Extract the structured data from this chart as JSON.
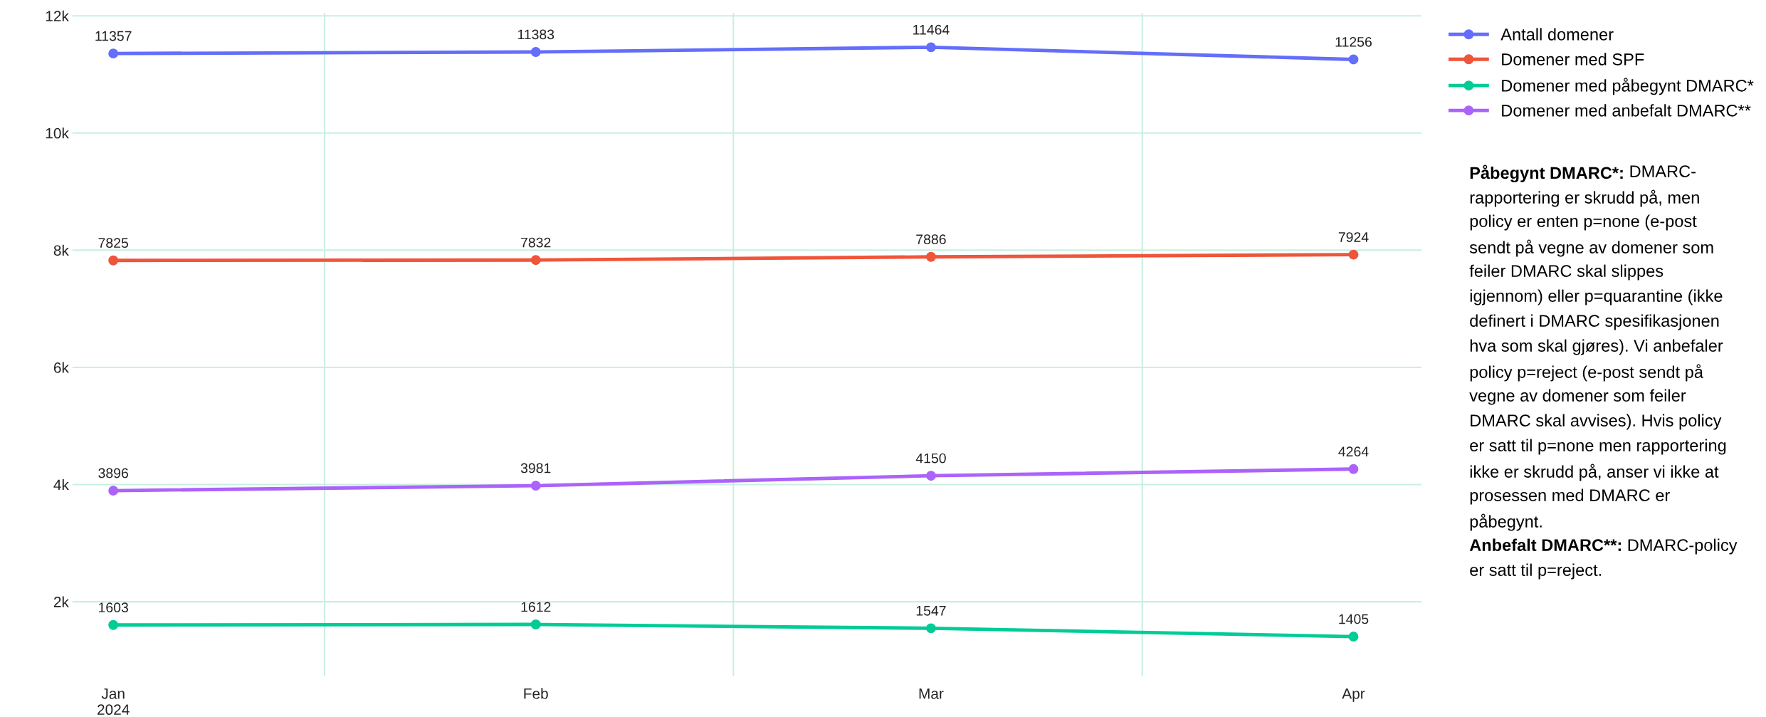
{
  "chart_data": {
    "type": "line",
    "x": [
      "2024-01-01",
      "2024-02-01",
      "2024-03-01",
      "2024-04-01"
    ],
    "series": [
      {
        "name": "Antall domener",
        "color": "#636efa",
        "values": [
          11357,
          11383,
          11464,
          11256
        ]
      },
      {
        "name": "Domener med SPF",
        "color": "#ef553b",
        "values": [
          7825,
          7832,
          7886,
          7924
        ]
      },
      {
        "name": "Domener med påbegynt DMARC*",
        "color": "#00cc96",
        "values": [
          1603,
          1612,
          1547,
          1405
        ]
      },
      {
        "name": "Domener med anbefalt DMARC**",
        "color": "#ab63fa",
        "values": [
          3896,
          3981,
          4150,
          4264
        ]
      }
    ],
    "xlim": [
      "2023-12-29",
      "2024-04-06"
    ],
    "xticks": [
      {
        "value": "2024-01-01",
        "label": "Jan\n2024"
      },
      {
        "value": "2024-02-01",
        "label": "Feb"
      },
      {
        "value": "2024-03-01",
        "label": "Mar"
      },
      {
        "value": "2024-04-01",
        "label": "Apr"
      }
    ],
    "ylim": [
      730,
      12050
    ],
    "yticks": [
      {
        "value": 2000,
        "label": "2k"
      },
      {
        "value": 4000,
        "label": "4k"
      },
      {
        "value": 6000,
        "label": "6k"
      },
      {
        "value": 8000,
        "label": "8k"
      },
      {
        "value": 10000,
        "label": "10k"
      },
      {
        "value": 12000,
        "label": "12k"
      }
    ],
    "grid": true,
    "legend": "right",
    "marker": "circle",
    "line_style": "solid",
    "data_labels": true,
    "annotations": [
      "Påbegynt DMARC*: DMARC-\nrapportering er skrudd på, men\npolicy er enten p=none (e-post\nsendt på vegne av domener som\nfeiler DMARC skal slippes\nigjennom) eller p=quarantine (ikke\ndefinert i DMARC spesifikasjonen\nhva som skal gjøres). Vi anbefaler\npolicy p=reject (e-post sendt på\nvegne av domener som feiler\nDMARC skal avvises). Hvis policy\ner satt til p=none men rapportering\nikke er skrudd på, anser vi ikke at\nprosessen med DMARC er\npåbegynt.",
      "Anbefalt DMARC**: DMARC-policy\ner satt til p=reject."
    ]
  }
}
